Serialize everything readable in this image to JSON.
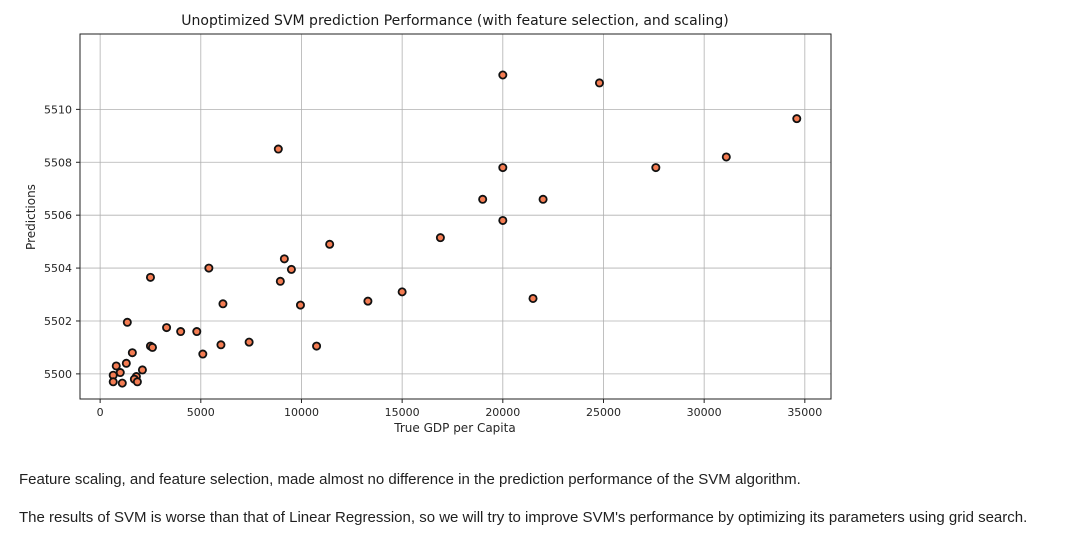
{
  "chart_data": {
    "type": "scatter",
    "title": "Unoptimized SVM prediction Performance (with feature selection, and scaling)",
    "xlabel": "True GDP per Capita",
    "ylabel": "Predictions",
    "xlim": [
      -1000,
      36300
    ],
    "ylim": [
      5499.05,
      5512.85
    ],
    "xticks": [
      0,
      5000,
      10000,
      15000,
      20000,
      25000,
      30000,
      35000
    ],
    "yticks": [
      5500,
      5502,
      5504,
      5506,
      5508,
      5510
    ],
    "grid": true,
    "marker": {
      "fill": "#f47c52",
      "edge": "#111111"
    },
    "points": [
      {
        "x": 20000,
        "y": 5511.3
      },
      {
        "x": 24800,
        "y": 5511.0
      },
      {
        "x": 34600,
        "y": 5509.65
      },
      {
        "x": 8850,
        "y": 5508.5
      },
      {
        "x": 31100,
        "y": 5508.2
      },
      {
        "x": 20000,
        "y": 5507.8
      },
      {
        "x": 27600,
        "y": 5507.8
      },
      {
        "x": 19000,
        "y": 5506.6
      },
      {
        "x": 22000,
        "y": 5506.6
      },
      {
        "x": 20000,
        "y": 5505.8
      },
      {
        "x": 16900,
        "y": 5505.15
      },
      {
        "x": 11400,
        "y": 5504.9
      },
      {
        "x": 9150,
        "y": 5504.35
      },
      {
        "x": 5400,
        "y": 5504.0
      },
      {
        "x": 9500,
        "y": 5503.95
      },
      {
        "x": 2500,
        "y": 5503.65
      },
      {
        "x": 8950,
        "y": 5503.5
      },
      {
        "x": 15000,
        "y": 5503.1
      },
      {
        "x": 21500,
        "y": 5502.85
      },
      {
        "x": 13300,
        "y": 5502.75
      },
      {
        "x": 6100,
        "y": 5502.65
      },
      {
        "x": 9950,
        "y": 5502.6
      },
      {
        "x": 1350,
        "y": 5501.95
      },
      {
        "x": 3300,
        "y": 5501.75
      },
      {
        "x": 4000,
        "y": 5501.6
      },
      {
        "x": 4800,
        "y": 5501.6
      },
      {
        "x": 7400,
        "y": 5501.2
      },
      {
        "x": 6000,
        "y": 5501.1
      },
      {
        "x": 10750,
        "y": 5501.05
      },
      {
        "x": 2500,
        "y": 5501.05
      },
      {
        "x": 2600,
        "y": 5501.0
      },
      {
        "x": 1600,
        "y": 5500.8
      },
      {
        "x": 5100,
        "y": 5500.75
      },
      {
        "x": 1300,
        "y": 5500.4
      },
      {
        "x": 800,
        "y": 5500.3
      },
      {
        "x": 2100,
        "y": 5500.15
      },
      {
        "x": 1000,
        "y": 5500.05
      },
      {
        "x": 650,
        "y": 5499.95
      },
      {
        "x": 1800,
        "y": 5499.9
      },
      {
        "x": 1700,
        "y": 5499.8
      },
      {
        "x": 650,
        "y": 5499.7
      },
      {
        "x": 1100,
        "y": 5499.65
      },
      {
        "x": 1850,
        "y": 5499.7
      }
    ]
  },
  "text": {
    "paragraph_1": "Feature scaling, and feature selection, made almost no difference in the prediction performance of the SVM algorithm.",
    "paragraph_2": "The results of SVM is worse than that of Linear Regression, so we will try to improve SVM's performance by optimizing its parameters using grid search."
  }
}
